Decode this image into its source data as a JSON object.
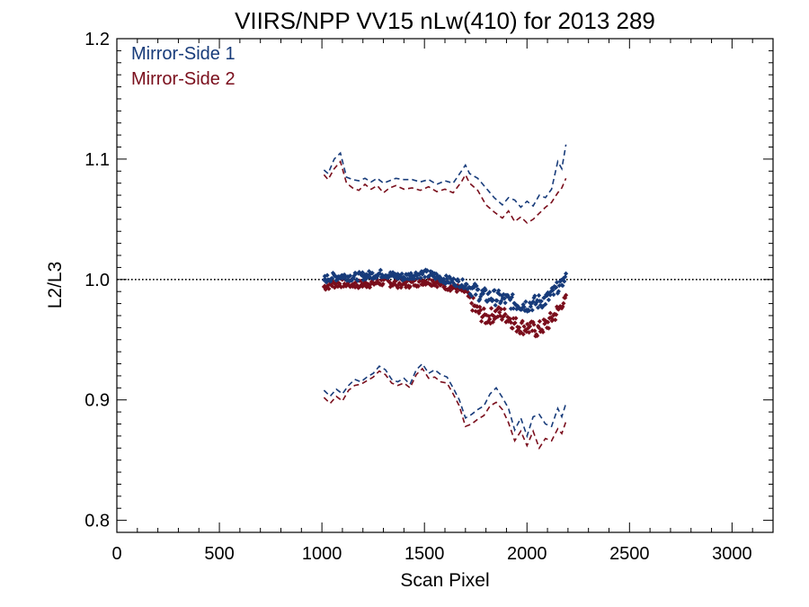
{
  "chart_data": {
    "type": "line",
    "title": "VIIRS/NPP VV15 nLw(410) for 2013 289",
    "xlabel": "Scan Pixel",
    "ylabel": "L2/L3",
    "xlim": [
      0,
      3200
    ],
    "ylim": [
      0.79,
      1.2
    ],
    "xticks": [
      0,
      500,
      1000,
      1500,
      2000,
      2500,
      3000
    ],
    "xtick_labels": [
      "0",
      "500",
      "1000",
      "1500",
      "2000",
      "2500",
      "3000"
    ],
    "yticks": [
      0.8,
      0.9,
      1.0,
      1.1,
      1.2
    ],
    "ytick_labels": [
      "0.8",
      "0.9",
      "1.0",
      "1.1",
      "1.2"
    ],
    "grid": false,
    "legend_position": "top-left",
    "reference_line": {
      "y": 1.0,
      "style": "dotted"
    },
    "colors": {
      "mirror_side_1": "#173B7A",
      "mirror_side_2": "#7A0E1C",
      "axes": "#000000"
    },
    "series": [
      {
        "name": "Mirror-Side 1",
        "style": "points",
        "x": [
          1010,
          1050,
          1100,
          1150,
          1200,
          1250,
          1300,
          1350,
          1400,
          1450,
          1500,
          1550,
          1600,
          1650,
          1700,
          1750,
          1800,
          1850,
          1900,
          1950,
          2000,
          2050,
          2100,
          2150,
          2190
        ],
        "y": [
          1.0,
          1.002,
          1.003,
          1.002,
          1.003,
          1.004,
          1.005,
          1.003,
          1.002,
          1.004,
          1.005,
          1.003,
          1.0,
          0.998,
          0.996,
          0.99,
          0.986,
          0.985,
          0.983,
          0.98,
          0.979,
          0.981,
          0.984,
          0.992,
          1.002
        ]
      },
      {
        "name": "Mirror-Side 2",
        "style": "points",
        "x": [
          1010,
          1050,
          1100,
          1150,
          1200,
          1250,
          1300,
          1350,
          1400,
          1450,
          1500,
          1550,
          1600,
          1650,
          1700,
          1750,
          1800,
          1850,
          1900,
          1950,
          2000,
          2050,
          2100,
          2150,
          2190
        ],
        "y": [
          0.994,
          0.996,
          0.997,
          0.996,
          0.996,
          0.997,
          0.998,
          0.997,
          0.996,
          0.997,
          0.999,
          0.998,
          0.995,
          0.993,
          0.99,
          0.975,
          0.968,
          0.972,
          0.97,
          0.962,
          0.96,
          0.958,
          0.963,
          0.974,
          0.984
        ]
      },
      {
        "style": "dashed",
        "color_key": "mirror_side_1",
        "x": [
          1010,
          1030,
          1060,
          1090,
          1120,
          1150,
          1180,
          1210,
          1240,
          1270,
          1300,
          1330,
          1360,
          1400,
          1440,
          1480,
          1520,
          1560,
          1600,
          1640,
          1680,
          1700,
          1720,
          1760,
          1800,
          1840,
          1880,
          1910,
          1940,
          1970,
          2000,
          2030,
          2060,
          2090,
          2120,
          2150,
          2170,
          2190
        ],
        "y": [
          1.091,
          1.088,
          1.1,
          1.105,
          1.085,
          1.083,
          1.082,
          1.084,
          1.081,
          1.084,
          1.08,
          1.082,
          1.084,
          1.083,
          1.083,
          1.081,
          1.083,
          1.079,
          1.082,
          1.08,
          1.09,
          1.095,
          1.088,
          1.084,
          1.076,
          1.068,
          1.062,
          1.068,
          1.066,
          1.06,
          1.065,
          1.061,
          1.07,
          1.068,
          1.075,
          1.098,
          1.092,
          1.112
        ]
      },
      {
        "style": "dashed",
        "color_key": "mirror_side_2",
        "x": [
          1010,
          1030,
          1060,
          1090,
          1120,
          1150,
          1180,
          1210,
          1240,
          1270,
          1300,
          1330,
          1360,
          1400,
          1440,
          1480,
          1520,
          1560,
          1600,
          1640,
          1680,
          1700,
          1720,
          1760,
          1800,
          1840,
          1880,
          1910,
          1940,
          1970,
          2000,
          2030,
          2060,
          2090,
          2120,
          2150,
          2170,
          2190
        ],
        "y": [
          1.087,
          1.083,
          1.092,
          1.098,
          1.08,
          1.076,
          1.074,
          1.079,
          1.075,
          1.078,
          1.072,
          1.076,
          1.078,
          1.075,
          1.076,
          1.074,
          1.077,
          1.073,
          1.075,
          1.072,
          1.081,
          1.087,
          1.08,
          1.074,
          1.062,
          1.056,
          1.051,
          1.057,
          1.048,
          1.052,
          1.047,
          1.05,
          1.055,
          1.06,
          1.064,
          1.072,
          1.076,
          1.084
        ]
      },
      {
        "style": "dashed",
        "color_key": "mirror_side_1",
        "x": [
          1010,
          1040,
          1070,
          1100,
          1130,
          1160,
          1190,
          1220,
          1250,
          1280,
          1310,
          1340,
          1370,
          1400,
          1430,
          1460,
          1490,
          1520,
          1550,
          1580,
          1610,
          1640,
          1670,
          1700,
          1730,
          1760,
          1790,
          1820,
          1850,
          1880,
          1910,
          1940,
          1970,
          2000,
          2030,
          2060,
          2090,
          2120,
          2150,
          2170,
          2190
        ],
        "y": [
          0.908,
          0.903,
          0.909,
          0.905,
          0.912,
          0.917,
          0.915,
          0.919,
          0.922,
          0.928,
          0.925,
          0.917,
          0.915,
          0.918,
          0.913,
          0.925,
          0.93,
          0.922,
          0.925,
          0.921,
          0.919,
          0.91,
          0.9,
          0.885,
          0.888,
          0.892,
          0.895,
          0.905,
          0.91,
          0.902,
          0.893,
          0.875,
          0.885,
          0.87,
          0.886,
          0.888,
          0.88,
          0.878,
          0.893,
          0.886,
          0.897
        ]
      },
      {
        "style": "dashed",
        "color_key": "mirror_side_2",
        "x": [
          1010,
          1040,
          1070,
          1100,
          1130,
          1160,
          1190,
          1220,
          1250,
          1280,
          1310,
          1340,
          1370,
          1400,
          1430,
          1460,
          1490,
          1520,
          1550,
          1580,
          1610,
          1640,
          1670,
          1700,
          1730,
          1760,
          1790,
          1820,
          1850,
          1880,
          1910,
          1940,
          1970,
          2000,
          2030,
          2060,
          2090,
          2120,
          2150,
          2170,
          2190
        ],
        "y": [
          0.902,
          0.897,
          0.903,
          0.899,
          0.908,
          0.912,
          0.913,
          0.916,
          0.919,
          0.924,
          0.921,
          0.914,
          0.912,
          0.914,
          0.91,
          0.921,
          0.926,
          0.918,
          0.919,
          0.915,
          0.914,
          0.905,
          0.895,
          0.878,
          0.88,
          0.884,
          0.887,
          0.895,
          0.898,
          0.892,
          0.881,
          0.866,
          0.874,
          0.862,
          0.874,
          0.86,
          0.868,
          0.866,
          0.876,
          0.872,
          0.882
        ]
      }
    ]
  }
}
